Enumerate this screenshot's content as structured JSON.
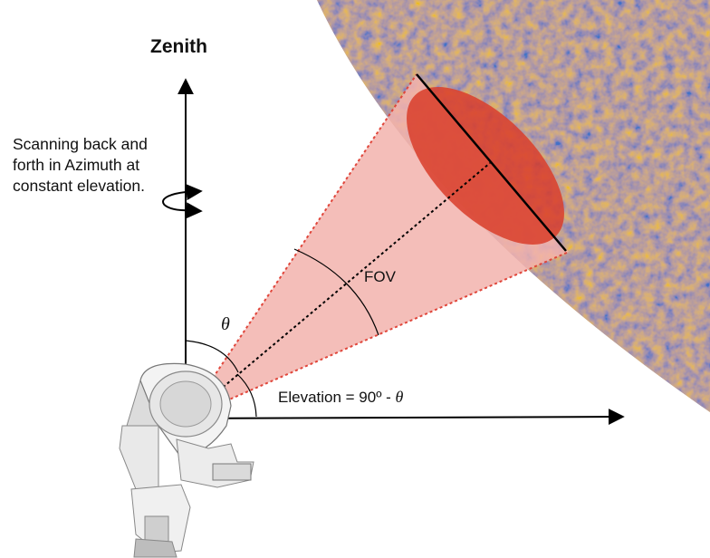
{
  "diagram": {
    "zenith_label": "Zenith",
    "scan_note_lines": [
      "Scanning back and",
      "forth in Azimuth at",
      "constant elevation."
    ],
    "fov_label": "FOV",
    "theta_symbol": "θ",
    "elevation_label_prefix": "Elevation = 90º - ",
    "elevation_label_theta": "θ",
    "colors": {
      "cmb_warm": "#e9a255",
      "cmb_cool": "#5aa9e0",
      "beam_fill": "#f2b3ad",
      "beam_edge": "#e0463b",
      "ellipse_fill": "#d9412d",
      "axis": "#000000"
    }
  }
}
